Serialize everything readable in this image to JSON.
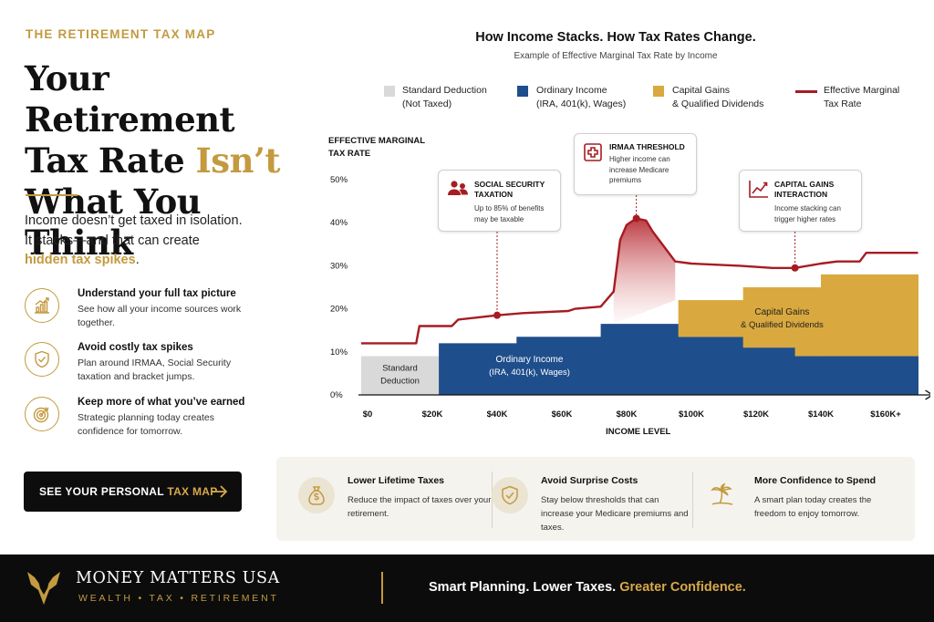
{
  "eyebrow": "THE RETIREMENT TAX MAP",
  "headline": {
    "l1": "Your Retirement",
    "l2a": "Tax Rate ",
    "l2b": "Isn’t",
    "l3": "What You Think"
  },
  "intro": {
    "l1": "Income doesn’t get taxed in isolation.",
    "l2": "It stacks—and that can create",
    "hl": "hidden tax spikes",
    "end": "."
  },
  "benefits": [
    {
      "title": "Understand your full tax picture",
      "desc": "See how all your income sources work together.",
      "icon": "chart-growth-icon"
    },
    {
      "title": "Avoid costly tax spikes",
      "desc": "Plan around IRMAA, Social Security taxation and bracket jumps.",
      "icon": "shield-check-icon"
    },
    {
      "title": "Keep more of what you’ve earned",
      "desc": "Strategic planning today creates confidence for tomorrow.",
      "icon": "target-icon"
    }
  ],
  "cta": {
    "a": "SEE YOUR PERSONAL ",
    "b": "TAX MAP"
  },
  "chart": {
    "title": "How Income Stacks. How Tax Rates Change.",
    "subtitle": "Example of Effective Marginal Tax Rate by Income",
    "ytitle1": "EFFECTIVE MARGINAL",
    "ytitle2": "TAX RATE",
    "legend": [
      {
        "l1": "Standard Deduction",
        "l2": "(Not Taxed)",
        "color": "#d9d9d9"
      },
      {
        "l1": "Ordinary Income",
        "l2": "(IRA, 401(k), Wages)",
        "color": "#1f4e8c"
      },
      {
        "l1": "Capital Gains",
        "l2": "& Qualified Dividends",
        "color": "#d9a93f"
      },
      {
        "l1": "Effective Marginal",
        "l2": "Tax Rate",
        "color": "#a61c22"
      }
    ],
    "callouts": [
      {
        "title1": "SOCIAL SECURITY",
        "title2": "TAXATION",
        "d1": "Up to 85% of benefits",
        "d2": "may be taxable",
        "d3": "",
        "icon": "people-icon"
      },
      {
        "title1": "IRMAA THRESHOLD",
        "title2": "",
        "d1": "Higher income can",
        "d2": "increase Medicare",
        "d3": "premiums",
        "icon": "medical-cross-icon"
      },
      {
        "title1": "CAPITAL GAINS",
        "title2": "INTERACTION",
        "d1": "Income stacking can",
        "d2": "trigger higher rates",
        "d3": "",
        "icon": "trend-line-icon"
      }
    ]
  },
  "chart_data": {
    "type": "area",
    "title": "How Income Stacks. How Tax Rates Change.",
    "subtitle": "Example of Effective Marginal Tax Rate by Income",
    "xlabel": "INCOME LEVEL",
    "ylabel": "EFFECTIVE MARGINAL TAX RATE",
    "x_ticks": [
      "$0",
      "$20K",
      "$40K",
      "$60K",
      "$80K",
      "$100K",
      "$120K",
      "$140K",
      "$160K+"
    ],
    "y_ticks": [
      "0%",
      "10%",
      "20%",
      "30%",
      "40%",
      "50%"
    ],
    "xlim": [
      0,
      170000
    ],
    "ylim": [
      0,
      50
    ],
    "legend_position": "top",
    "grid": false,
    "stack_labels": [
      {
        "l1": "Standard",
        "l2": "Deduction",
        "x": 10000,
        "y": 5
      },
      {
        "l1": "Ordinary Income",
        "l2": "(IRA, 401(k), Wages)",
        "x": 50000,
        "y": 7
      },
      {
        "l1": "Capital Gains",
        "l2": "& Qualified Dividends",
        "x": 128000,
        "y": 18
      }
    ],
    "standard_deduction": {
      "x_start": -2000,
      "x_end": 22000,
      "top": 9
    },
    "ordinary_income": [
      {
        "x_start": 22000,
        "x_end": 46000,
        "top": 12
      },
      {
        "x_start": 46000,
        "x_end": 72000,
        "top": 13.5
      },
      {
        "x_start": 72000,
        "x_end": 96000,
        "top": 16.5
      },
      {
        "x_start": 96000,
        "x_end": 116000,
        "top": 13.5
      },
      {
        "x_start": 116000,
        "x_end": 132000,
        "top": 11
      },
      {
        "x_start": 132000,
        "x_end": 170000,
        "top": 9
      }
    ],
    "capital_gains": [
      {
        "x_start": 96000,
        "x_end": 116000,
        "top": 22
      },
      {
        "x_start": 116000,
        "x_end": 140000,
        "top": 25
      },
      {
        "x_start": 140000,
        "x_end": 170000,
        "top": 28
      }
    ],
    "series": [
      {
        "name": "Effective Marginal Tax Rate",
        "color": "#a61c22",
        "x": [
          -2000,
          15000,
          16000,
          26000,
          28000,
          40000,
          48000,
          62000,
          64000,
          72000,
          76000,
          78000,
          80000,
          83000,
          86000,
          88000,
          92000,
          95000,
          100000,
          115000,
          125000,
          132000,
          140000,
          145000,
          152000,
          154000,
          170000
        ],
        "y": [
          12,
          12,
          16,
          16,
          17.5,
          18.5,
          19,
          19.5,
          20,
          20.5,
          24,
          36,
          39.5,
          41,
          40.5,
          38,
          34,
          31,
          30.5,
          30,
          29.5,
          29.5,
          30.5,
          31,
          31,
          33,
          33
        ]
      }
    ],
    "markers": [
      {
        "label": "SOCIAL SECURITY TAXATION",
        "x": 40000,
        "y": 18.5
      },
      {
        "label": "IRMAA THRESHOLD",
        "x": 83000,
        "y": 41
      },
      {
        "label": "CAPITAL GAINS INTERACTION",
        "x": 132000,
        "y": 29.5
      }
    ]
  },
  "panel": [
    {
      "title": "Lower Lifetime Taxes",
      "desc": "Reduce the impact of taxes over your retirement.",
      "icon": "money-bag-icon"
    },
    {
      "title": "Avoid Surprise Costs",
      "desc": "Stay below thresholds that can increase your Medicare premiums and taxes.",
      "icon": "shield-check-icon"
    },
    {
      "title": "More Confidence to Spend",
      "desc": "A smart plan today creates the freedom to enjoy tomorrow.",
      "icon": "palm-tree-icon"
    }
  ],
  "footer": {
    "brand": "MONEY MATTERS USA",
    "tagline": "WEALTH • TAX • RETIREMENT",
    "slogan_a": "Smart Planning. Lower Taxes. ",
    "slogan_b": "Greater Confidence."
  },
  "colors": {
    "gold": "#c39a3f",
    "navy": "#1f4e8c",
    "red": "#a61c22",
    "gray": "#d9d9d9",
    "black": "#0c0c0c"
  }
}
